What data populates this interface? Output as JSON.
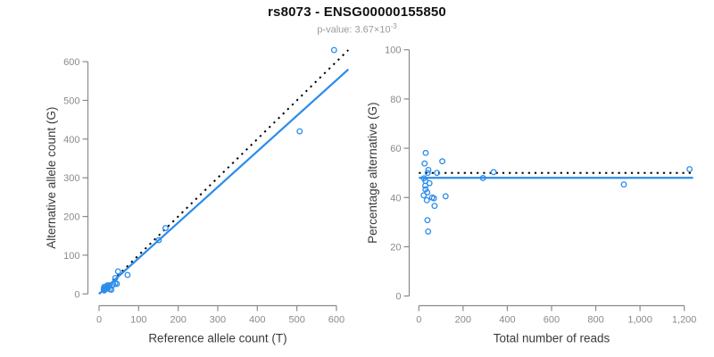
{
  "header": {
    "title": "rs8073 - ENSG00000155850",
    "pvalue_prefix": "p-value: 3.67×10",
    "pvalue_exponent": "-3"
  },
  "colors": {
    "accent_blue": "#2b8cea",
    "reference_black": "#000000",
    "axis_gray": "#8a8a8a",
    "label_dark": "#3a3a3a",
    "background": "#ffffff"
  },
  "chart_data": [
    {
      "type": "scatter",
      "title": "",
      "xlabel": "Reference allele count (T)",
      "ylabel": "Alternative allele count (G)",
      "xlim": [
        0,
        630
      ],
      "ylim": [
        0,
        640
      ],
      "grid": false,
      "xticks": [
        0,
        100,
        200,
        300,
        400,
        500,
        600
      ],
      "xtick_labels": [
        "0",
        "100",
        "200",
        "300",
        "400",
        "500",
        "600"
      ],
      "yticks": [
        0,
        100,
        200,
        300,
        400,
        500,
        600
      ],
      "ytick_labels": [
        "0",
        "100",
        "200",
        "300",
        "400",
        "500",
        "600"
      ],
      "points": [
        [
          13,
          18
        ],
        [
          48,
          58
        ],
        [
          12,
          14
        ],
        [
          21,
          22
        ],
        [
          20,
          20
        ],
        [
          41,
          41
        ],
        [
          12,
          11
        ],
        [
          16,
          14
        ],
        [
          26,
          22
        ],
        [
          16,
          13
        ],
        [
          17,
          13
        ],
        [
          22,
          16
        ],
        [
          13,
          9
        ],
        [
          36,
          24
        ],
        [
          41,
          27
        ],
        [
          72,
          49
        ],
        [
          22,
          14
        ],
        [
          45,
          26
        ],
        [
          27,
          12
        ],
        [
          31,
          11
        ],
        [
          168,
          170
        ],
        [
          151,
          139
        ],
        [
          507,
          420
        ],
        [
          594,
          630
        ]
      ],
      "lines": [
        {
          "name": "identity-line",
          "style": "dotted",
          "color": "#000000",
          "x1": 0,
          "y1": 0,
          "x2": 630,
          "y2": 630
        },
        {
          "name": "fit-line",
          "style": "solid",
          "color": "#2b8cea",
          "x1": 0,
          "y1": 0,
          "x2": 630,
          "y2": 580
        }
      ]
    },
    {
      "type": "scatter",
      "title": "",
      "xlabel": "Total number of reads",
      "ylabel": "Percentage alternative (G)",
      "xlim": [
        0,
        1240
      ],
      "ylim": [
        0,
        100
      ],
      "grid": false,
      "xticks": [
        0,
        200,
        400,
        600,
        800,
        1000,
        1200
      ],
      "xtick_labels": [
        "0",
        "200",
        "400",
        "600",
        "800",
        "1,000",
        "1,200"
      ],
      "yticks": [
        0,
        20,
        40,
        60,
        80,
        100
      ],
      "ytick_labels": [
        "0",
        "20",
        "40",
        "60",
        "80",
        "100"
      ],
      "points": [
        [
          31,
          58.1
        ],
        [
          106,
          54.7
        ],
        [
          26,
          53.8
        ],
        [
          43,
          51.2
        ],
        [
          40,
          50.0
        ],
        [
          82,
          50.0
        ],
        [
          23,
          47.8
        ],
        [
          30,
          46.7
        ],
        [
          48,
          45.8
        ],
        [
          29,
          44.8
        ],
        [
          30,
          43.3
        ],
        [
          38,
          42.1
        ],
        [
          22,
          40.9
        ],
        [
          60,
          40.0
        ],
        [
          68,
          39.7
        ],
        [
          121,
          40.5
        ],
        [
          36,
          38.9
        ],
        [
          71,
          36.6
        ],
        [
          39,
          30.8
        ],
        [
          42,
          26.2
        ],
        [
          338,
          50.3
        ],
        [
          290,
          47.9
        ],
        [
          927,
          45.3
        ],
        [
          1224,
          51.5
        ]
      ],
      "lines": [
        {
          "name": "expected-percentage-line",
          "style": "dotted",
          "color": "#000000",
          "x1": 0,
          "y1": 50,
          "x2": 1240,
          "y2": 50
        },
        {
          "name": "fit-line",
          "style": "solid",
          "color": "#2b8cea",
          "x1": 0,
          "y1": 48,
          "x2": 1240,
          "y2": 48
        }
      ]
    }
  ]
}
